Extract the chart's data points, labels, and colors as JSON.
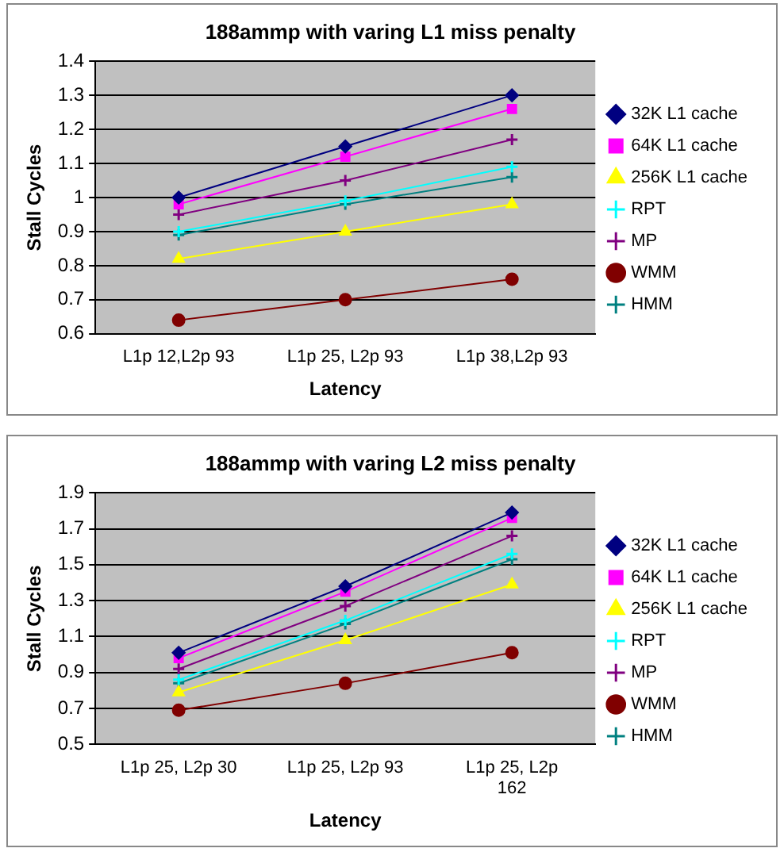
{
  "chart_data": [
    {
      "type": "line",
      "title": "188ammp with varing L1 miss penalty",
      "xlabel": "Latency",
      "ylabel": "Stall Cycles",
      "categories": [
        "L1p 12,L2p 93",
        "L1p 25, L2p 93",
        "L1p 38,L2p 93"
      ],
      "ylim": [
        0.6,
        1.4
      ],
      "yticks": [
        0.6,
        0.7,
        0.8,
        0.9,
        1,
        1.1,
        1.2,
        1.3,
        1.4
      ],
      "grid": "y",
      "legend": "right",
      "series": [
        {
          "name": "32K L1 cache",
          "color": "#000080",
          "marker": "diamond",
          "values": [
            1.0,
            1.15,
            1.3
          ]
        },
        {
          "name": "64K L1 cache",
          "color": "#ff00ff",
          "marker": "square",
          "values": [
            0.98,
            1.12,
            1.26
          ]
        },
        {
          "name": "256K L1 cache",
          "color": "#ffff00",
          "marker": "triangle",
          "values": [
            0.82,
            0.9,
            0.98
          ]
        },
        {
          "name": "RPT",
          "color": "#00ffff",
          "marker": "cross",
          "values": [
            0.9,
            0.99,
            1.09
          ]
        },
        {
          "name": "MP",
          "color": "#800080",
          "marker": "cross",
          "values": [
            0.95,
            1.05,
            1.17
          ]
        },
        {
          "name": "WMM",
          "color": "#800000",
          "marker": "circle",
          "values": [
            0.64,
            0.7,
            0.76
          ]
        },
        {
          "name": "HMM",
          "color": "#008080",
          "marker": "cross",
          "values": [
            0.89,
            0.98,
            1.06
          ]
        }
      ]
    },
    {
      "type": "line",
      "title": "188ammp with varing L2 miss penalty",
      "xlabel": "Latency",
      "ylabel": "Stall Cycles",
      "categories": [
        "L1p 25, L2p 30",
        "L1p 25, L2p 93",
        "L1p 25, L2p 162"
      ],
      "ylim": [
        0.5,
        1.9
      ],
      "yticks": [
        0.5,
        0.7,
        0.9,
        1.1,
        1.3,
        1.5,
        1.7,
        1.9
      ],
      "grid": "y",
      "legend": "right",
      "series": [
        {
          "name": "32K L1 cache",
          "color": "#000080",
          "marker": "diamond",
          "values": [
            1.01,
            1.38,
            1.79
          ]
        },
        {
          "name": "64K L1 cache",
          "color": "#ff00ff",
          "marker": "square",
          "values": [
            0.98,
            1.35,
            1.76
          ]
        },
        {
          "name": "256K L1 cache",
          "color": "#ffff00",
          "marker": "triangle",
          "values": [
            0.79,
            1.08,
            1.39
          ]
        },
        {
          "name": "RPT",
          "color": "#00ffff",
          "marker": "cross",
          "values": [
            0.86,
            1.19,
            1.56
          ]
        },
        {
          "name": "MP",
          "color": "#800080",
          "marker": "cross",
          "values": [
            0.92,
            1.27,
            1.66
          ]
        },
        {
          "name": "WMM",
          "color": "#800000",
          "marker": "circle",
          "values": [
            0.69,
            0.84,
            1.01
          ]
        },
        {
          "name": "HMM",
          "color": "#008080",
          "marker": "cross",
          "values": [
            0.84,
            1.17,
            1.53
          ]
        }
      ]
    }
  ]
}
